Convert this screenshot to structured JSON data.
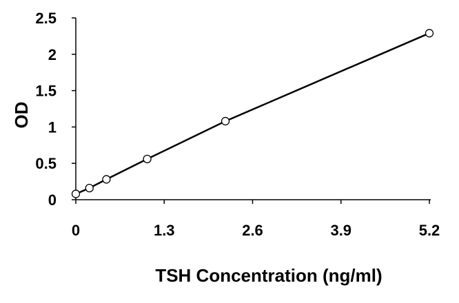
{
  "chart_data": {
    "type": "scatter",
    "title": "",
    "xlabel": "TSH Concentration (ng/ml)",
    "ylabel": "OD",
    "xlim": [
      0,
      5.2
    ],
    "ylim": [
      0,
      2.5
    ],
    "x_ticks": [
      "0",
      "1.3",
      "2.6",
      "3.9",
      "5.2"
    ],
    "y_ticks": [
      "0",
      "0.5",
      "1",
      "1.5",
      "2",
      "2.5"
    ],
    "grid": false,
    "legend": "none",
    "series": [
      {
        "x": [
          0,
          0.2,
          0.45,
          1.05,
          2.2,
          5.2
        ],
        "y": [
          0.08,
          0.16,
          0.28,
          0.56,
          1.08,
          2.29
        ],
        "marker": "open-circle",
        "line": "connected"
      }
    ],
    "colors": {
      "line": "#000000",
      "marker_fill": "#ffffff",
      "marker_stroke": "#000000",
      "axis": "#000000"
    }
  }
}
